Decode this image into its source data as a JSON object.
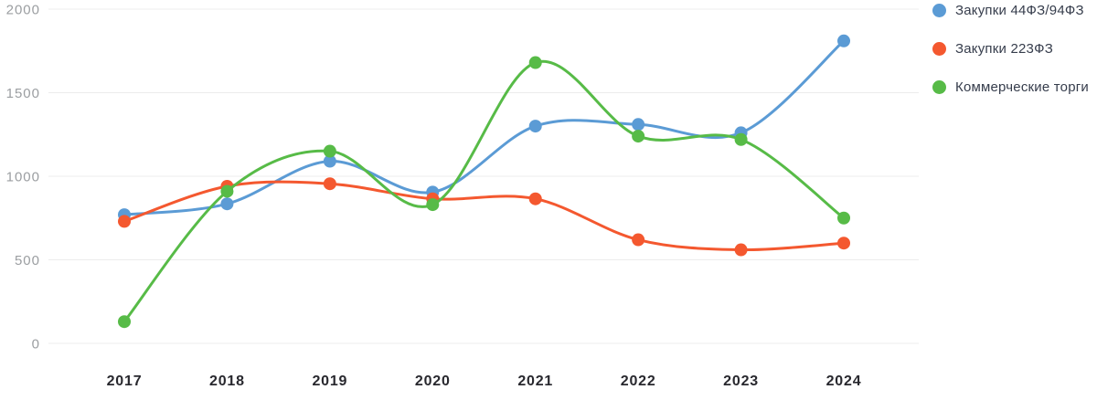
{
  "chart_data": {
    "type": "line",
    "title": "",
    "xlabel": "",
    "ylabel": "",
    "categories": [
      "2017",
      "2018",
      "2019",
      "2020",
      "2021",
      "2022",
      "2023",
      "2024"
    ],
    "series": [
      {
        "name": "Закупки 44ФЗ/94ФЗ",
        "color": "#5b9bd5",
        "values": [
          770,
          835,
          1090,
          905,
          1300,
          1310,
          1260,
          1810
        ]
      },
      {
        "name": "Закупки 223ФЗ",
        "color": "#f4582f",
        "values": [
          730,
          940,
          955,
          865,
          865,
          620,
          560,
          600
        ]
      },
      {
        "name": "Коммерческие торги",
        "color": "#57bb47",
        "values": [
          130,
          910,
          1150,
          830,
          1680,
          1240,
          1220,
          750
        ]
      }
    ],
    "yticks": [
      0,
      500,
      1000,
      1500,
      2000
    ],
    "ylim": [
      0,
      2000
    ],
    "grid": true,
    "legend_position": "right",
    "line_style": "smooth-spline",
    "markers": "filled-circles"
  },
  "colors": {
    "background": "#ffffff",
    "grid": "#ececec",
    "ytick_text": "#9b9ea1",
    "xtick_text": "#28282e",
    "legend_text": "#363d4c"
  }
}
